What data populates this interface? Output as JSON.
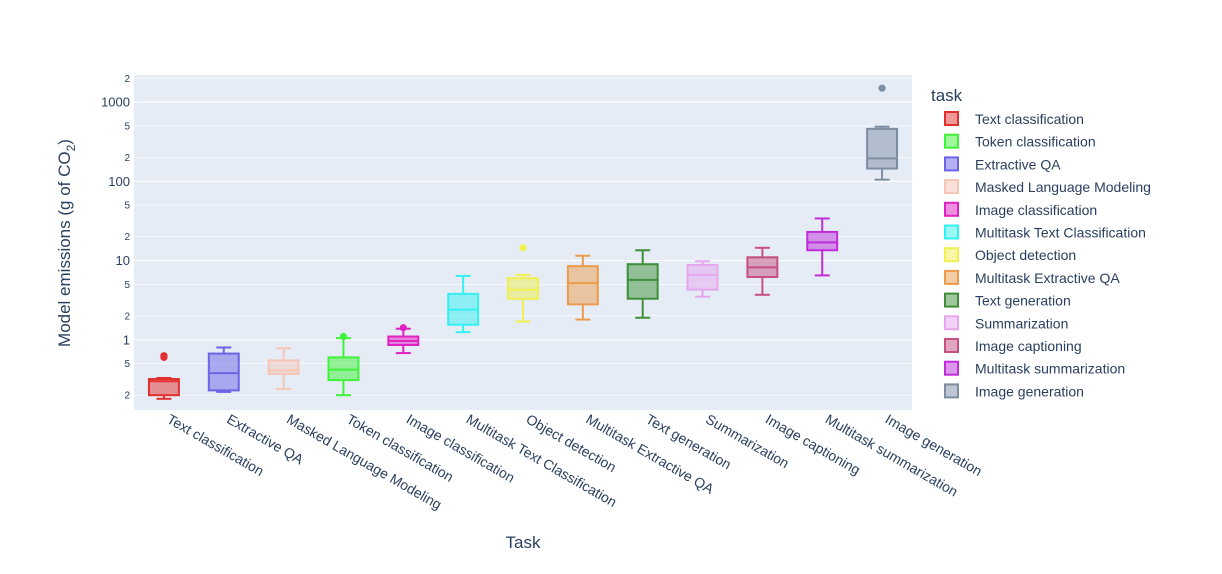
{
  "chart_data": {
    "type": "box",
    "xlabel": "Task",
    "ylabel": "Model emissions (g of CO",
    "ylabel_sub": "2",
    "ylabel_suffix": ")",
    "yscale": "log",
    "ylim": [
      0.13,
      2200
    ],
    "major_ticks": [
      {
        "value": 1,
        "label": "1"
      },
      {
        "value": 10,
        "label": "10"
      },
      {
        "value": 100,
        "label": "100"
      },
      {
        "value": 1000,
        "label": "1000"
      }
    ],
    "minor_ticks": [
      {
        "value": 0.2,
        "label": "2"
      },
      {
        "value": 0.5,
        "label": "5"
      },
      {
        "value": 2,
        "label": "2"
      },
      {
        "value": 5,
        "label": "5"
      },
      {
        "value": 20,
        "label": "2"
      },
      {
        "value": 50,
        "label": "5"
      },
      {
        "value": 200,
        "label": "2"
      },
      {
        "value": 500,
        "label": "5"
      },
      {
        "value": 2000,
        "label": "2"
      }
    ],
    "legend_title": "task",
    "legend_placement": "right",
    "grid": true,
    "categories": [
      "Text classification",
      "Extractive QA",
      "Masked Language Modeling",
      "Token classification",
      "Image classification",
      "Multitask Text Classification",
      "Object detection",
      "Multitask Extractive QA",
      "Text generation",
      "Summarization",
      "Image captioning",
      "Multitask summarization",
      "Image generation"
    ],
    "series": [
      {
        "name": "Text classification",
        "color": "#e32f2f",
        "min": 0.18,
        "q1": 0.2,
        "median": 0.3,
        "q3": 0.32,
        "max": 0.33,
        "outliers": [
          0.6,
          0.63
        ]
      },
      {
        "name": "Extractive QA",
        "color": "#6c63e6",
        "min": 0.22,
        "q1": 0.23,
        "median": 0.38,
        "q3": 0.67,
        "max": 0.8,
        "outliers": []
      },
      {
        "name": "Masked Language Modeling",
        "color": "#f5c6b6",
        "min": 0.24,
        "q1": 0.37,
        "median": 0.41,
        "q3": 0.55,
        "max": 0.78,
        "outliers": []
      },
      {
        "name": "Token classification",
        "color": "#3ff23a",
        "min": 0.2,
        "q1": 0.31,
        "median": 0.42,
        "q3": 0.6,
        "max": 1.05,
        "outliers": [
          1.1
        ]
      },
      {
        "name": "Image classification",
        "color": "#e020c0",
        "min": 0.68,
        "q1": 0.86,
        "median": 0.97,
        "q3": 1.1,
        "max": 1.38,
        "outliers": [
          1.42
        ]
      },
      {
        "name": "Multitask Text Classification",
        "color": "#35f0f0",
        "min": 1.25,
        "q1": 1.55,
        "median": 2.4,
        "q3": 3.8,
        "max": 6.4,
        "outliers": []
      },
      {
        "name": "Object detection",
        "color": "#f0f050",
        "min": 1.7,
        "q1": 3.3,
        "median": 4.3,
        "q3": 6.0,
        "max": 6.6,
        "outliers": [
          14.5
        ]
      },
      {
        "name": "Multitask Extractive QA",
        "color": "#eb9b4a",
        "min": 1.8,
        "q1": 2.8,
        "median": 5.2,
        "q3": 8.5,
        "max": 11.5,
        "outliers": []
      },
      {
        "name": "Text generation",
        "color": "#3f8f3a",
        "min": 1.9,
        "q1": 3.3,
        "median": 5.7,
        "q3": 9.0,
        "max": 13.5,
        "outliers": []
      },
      {
        "name": "Summarization",
        "color": "#e6a6ee",
        "min": 3.5,
        "q1": 4.3,
        "median": 6.6,
        "q3": 8.8,
        "max": 9.8,
        "outliers": []
      },
      {
        "name": "Image captioning",
        "color": "#c65082",
        "min": 3.7,
        "q1": 6.2,
        "median": 8.2,
        "q3": 11.0,
        "max": 14.5,
        "outliers": []
      },
      {
        "name": "Multitask summarization",
        "color": "#be2dd9",
        "min": 6.5,
        "q1": 13.5,
        "median": 17.0,
        "q3": 23.0,
        "max": 34.0,
        "outliers": []
      },
      {
        "name": "Image generation",
        "color": "#7d8ea3",
        "min": 105,
        "q1": 145,
        "median": 195,
        "q3": 460,
        "max": 490,
        "outliers": [
          1500
        ]
      }
    ],
    "legend_order": [
      "Text classification",
      "Token classification",
      "Extractive QA",
      "Masked Language Modeling",
      "Image classification",
      "Multitask Text Classification",
      "Object detection",
      "Multitask Extractive QA",
      "Text generation",
      "Summarization",
      "Image captioning",
      "Multitask summarization",
      "Image generation"
    ]
  }
}
